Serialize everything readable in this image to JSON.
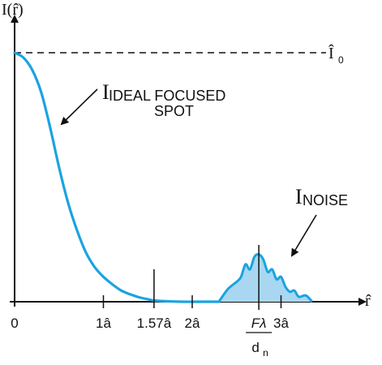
{
  "chart_data": {
    "type": "area",
    "colors": {
      "curve": "#1aa3e0",
      "fill": "#a9d7f2",
      "axis": "#111111"
    },
    "x_axis": {
      "symbol": "r̂",
      "range": [
        0,
        3.45
      ],
      "ticks": [
        {
          "value": 0,
          "label": "0"
        },
        {
          "value": 1,
          "label": "1â"
        },
        {
          "value": 1.57,
          "label": "1.57â"
        },
        {
          "value": 2,
          "label": "2â"
        },
        {
          "value": 2.75,
          "label_num": "Fλ",
          "label_den": "dn",
          "label_den_main": "d",
          "label_den_sub": "n"
        },
        {
          "value": 3,
          "label": "3â"
        }
      ]
    },
    "y_axis": {
      "symbol": "I(r̂)",
      "range": [
        0,
        1.1
      ],
      "reference_level": {
        "value": 1.0,
        "label_main": "Î",
        "label_sub": "0",
        "style": "dashed"
      }
    },
    "series": [
      {
        "name": "IIDEAL FOCUSED SPOT",
        "label_main": "I",
        "label_sub_line1": "IDEAL FOCUSED",
        "label_sub_line2": "SPOT",
        "x": [
          0,
          0.1,
          0.2,
          0.3,
          0.4,
          0.5,
          0.6,
          0.7,
          0.8,
          0.9,
          1.0,
          1.1,
          1.2,
          1.3,
          1.4,
          1.5,
          1.57,
          1.7,
          1.9,
          2.1,
          2.3
        ],
        "y": [
          1.0,
          0.98,
          0.93,
          0.84,
          0.7,
          0.54,
          0.4,
          0.29,
          0.2,
          0.14,
          0.1,
          0.07,
          0.045,
          0.03,
          0.018,
          0.01,
          0.005,
          0.002,
          0.0,
          0.0,
          0.0
        ]
      },
      {
        "name": "INOISE",
        "label_main": "I",
        "label_sub": "NOISE",
        "fill": true,
        "x": [
          2.3,
          2.4,
          2.5,
          2.55,
          2.6,
          2.65,
          2.7,
          2.75,
          2.8,
          2.85,
          2.9,
          2.95,
          3.0,
          3.05,
          3.1,
          3.15,
          3.2,
          3.28,
          3.35
        ],
        "y": [
          0.0,
          0.05,
          0.08,
          0.1,
          0.15,
          0.13,
          0.18,
          0.19,
          0.17,
          0.12,
          0.13,
          0.09,
          0.1,
          0.06,
          0.04,
          0.045,
          0.02,
          0.025,
          0.0
        ]
      }
    ]
  }
}
